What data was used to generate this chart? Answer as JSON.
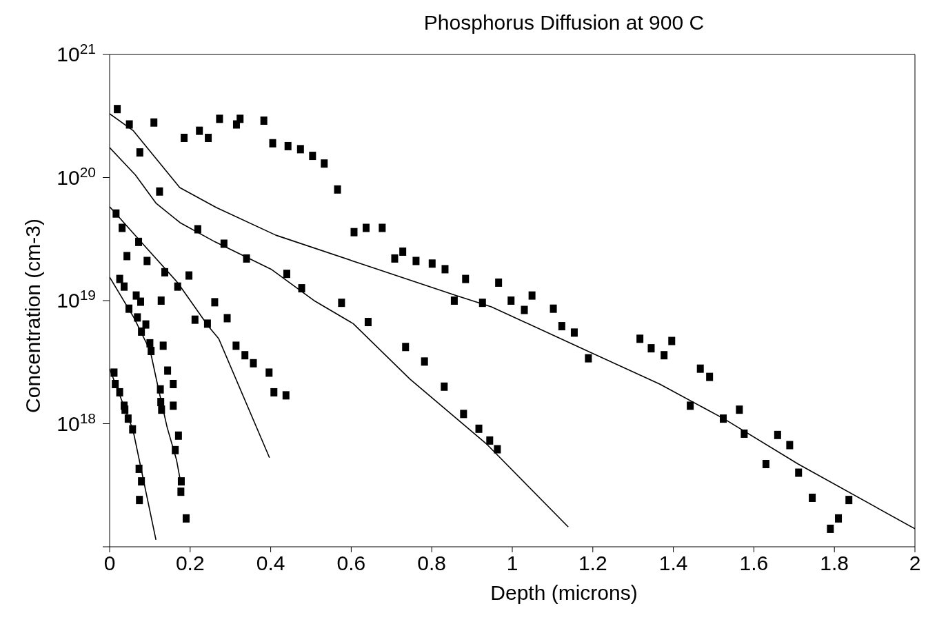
{
  "chart_data": {
    "type": "scatter",
    "title": "Phosphorus Diffusion at 900 C",
    "xlabel": "Depth (microns)",
    "ylabel": "Concentration (cm-3)",
    "xlim": [
      0,
      2
    ],
    "xticks": [
      0,
      0.2,
      0.4,
      0.6,
      0.8,
      1,
      1.2,
      1.4,
      1.6,
      1.8,
      2
    ],
    "ylim": [
      1e+17,
      1e+21
    ],
    "yticks": [
      {
        "value": 1e+17,
        "label": null
      },
      {
        "value": 1e+18,
        "label": "10$^{18}$"
      },
      {
        "value": 1e+19,
        "label": "10$^{19}$"
      },
      {
        "value": 1e+20,
        "label": "10$^{20}$"
      },
      {
        "value": 1e+21,
        "label": "10$^{21}$"
      }
    ],
    "log": "y",
    "grid": false,
    "legend": false,
    "marker": "square",
    "series": [
      {
        "color": "#000000",
        "x": [
          0.019,
          0.049,
          0.11,
          0.185,
          0.223,
          0.245,
          0.273,
          0.315,
          0.324,
          0.383,
          0.405,
          0.443,
          0.474,
          0.504,
          0.533,
          0.566,
          0.607,
          0.637,
          0.677,
          0.708,
          0.728,
          0.761,
          0.801,
          0.833,
          0.884,
          0.856,
          0.926,
          0.966,
          0.997,
          1.03,
          1.049,
          1.102,
          1.123,
          1.154,
          1.189,
          1.317,
          1.345,
          1.377,
          1.396,
          1.467,
          1.49,
          1.442,
          1.524,
          1.564,
          1.576,
          1.63,
          1.659,
          1.689,
          1.711,
          1.745,
          1.79,
          1.81,
          1.836
        ],
        "values": [
          3.6e+20,
          2.7e+20,
          2.8e+20,
          2.1e+20,
          2.4e+20,
          2.1e+20,
          3e+20,
          2.7e+20,
          3e+20,
          2.9e+20,
          1.9e+20,
          1.8e+20,
          1.7e+20,
          1.5e+20,
          1.3e+20,
          8e+19,
          3.6e+19,
          3.9e+19,
          3.9e+19,
          2.2e+19,
          2.5e+19,
          2.1e+19,
          2e+19,
          1.8e+19,
          1.5e+19,
          1e+19,
          9.6e+18,
          1.4e+19,
          1e+19,
          8.4e+18,
          1.1e+19,
          8.6e+18,
          6.2e+18,
          5.5e+18,
          3.4e+18,
          4.9e+18,
          4.1e+18,
          3.6e+18,
          4.7e+18,
          2.8e+18,
          2.4e+18,
          1.4e+18,
          1.1e+18,
          1.3e+18,
          8.3e+17,
          4.7e+17,
          8.1e+17,
          6.7e+17,
          4e+17,
          2.5e+17,
          1.4e+17,
          1.7e+17,
          2.4e+17
        ]
      },
      {
        "color": "#000000",
        "x": [
          0.075,
          0.124,
          0.219,
          0.284,
          0.34,
          0.44,
          0.477,
          0.576,
          0.642,
          0.735,
          0.782,
          0.831,
          0.879,
          0.917,
          0.944,
          0.963
        ],
        "values": [
          1.6e+20,
          7.7e+19,
          3.8e+19,
          2.9e+19,
          2.2e+19,
          1.65e+19,
          1.26e+19,
          9.6e+18,
          6.7e+18,
          4.2e+18,
          3.2e+18,
          2e+18,
          1.2e+18,
          9.1e+17,
          7.3e+17,
          6.2e+17
        ]
      },
      {
        "color": "#000000",
        "x": [
          0.016,
          0.031,
          0.043,
          0.072,
          0.093,
          0.137,
          0.128,
          0.169,
          0.197,
          0.212,
          0.243,
          0.261,
          0.292,
          0.314,
          0.336,
          0.357,
          0.396,
          0.408,
          0.438
        ],
        "values": [
          5.1e+19,
          3.9e+19,
          2.3e+19,
          3e+19,
          2.1e+19,
          1.7e+19,
          1e+19,
          1.3e+19,
          1.6e+19,
          7e+18,
          6.5e+18,
          9.7e+18,
          7.2e+18,
          4.3e+18,
          3.6e+18,
          3.1e+18,
          2.6e+18,
          1.8e+18,
          1.7e+18
        ]
      },
      {
        "color": "#000000",
        "x": [
          0.025,
          0.036,
          0.066,
          0.077,
          0.048,
          0.069,
          0.09,
          0.079,
          0.1,
          0.103,
          0.133,
          0.144,
          0.158,
          0.126,
          0.127,
          0.158,
          0.129,
          0.171,
          0.163,
          0.178,
          0.177,
          0.19
        ],
        "values": [
          1.5e+19,
          1.3e+19,
          1.1e+19,
          9.8e+18,
          8.6e+18,
          7.3e+18,
          6.4e+18,
          5.6e+18,
          4.5e+18,
          3.9e+18,
          4.3e+18,
          2.7e+18,
          2.1e+18,
          1.9e+18,
          1.5e+18,
          1.4e+18,
          1.3e+18,
          8e+17,
          6.1e+17,
          3.4e+17,
          2.8e+17,
          1.7e+17
        ]
      },
      {
        "color": "#000000",
        "x": [
          0.011,
          0.014,
          0.025,
          0.036,
          0.038,
          0.046,
          0.057,
          0.073,
          0.079,
          0.074
        ],
        "values": [
          2.6e+18,
          2.1e+18,
          1.8e+18,
          1.4e+18,
          1.3e+18,
          1.1e+18,
          9e+17,
          4.3e+17,
          3.4e+17,
          2.4e+17
        ]
      },
      {
        "type": "line",
        "marker": "none",
        "color": "#000000",
        "x": [
          0,
          0.059,
          0.174,
          0.265,
          0.413,
          0.623,
          0.86,
          0.948,
          1.179,
          1.366,
          1.525,
          1.71,
          2
        ],
        "values": [
          3.3e+20,
          2.4e+20,
          8.3e+19,
          5.7e+19,
          3.4e+19,
          2e+19,
          1.1e+19,
          8.9e+18,
          4e+18,
          2.1e+18,
          1.1e+18,
          4.7e+17,
          1.4e+17
        ]
      },
      {
        "type": "line",
        "marker": "none",
        "color": "#000000",
        "x": [
          0,
          0.064,
          0.115,
          0.175,
          0.262,
          0.401,
          0.51,
          0.605,
          0.746,
          0.935,
          1.139
        ],
        "values": [
          1.75e+20,
          1.05e+20,
          6.2e+19,
          4.3e+19,
          3e+19,
          1.8e+19,
          9.9e+18,
          6.5e+18,
          2.3e+18,
          6.9e+17,
          1.45e+17
        ]
      },
      {
        "type": "line",
        "marker": "none",
        "color": "#000000",
        "x": [
          0,
          0.076,
          0.169,
          0.245,
          0.271,
          0.397
        ],
        "values": [
          5.8e+19,
          3.05e+19,
          1.4e+19,
          6.2e+18,
          4.9e+18,
          5.3e+17
        ]
      },
      {
        "type": "line",
        "marker": "none",
        "color": "#000000",
        "x": [
          0,
          0.06,
          0.101,
          0.12,
          0.143,
          0.166,
          0.176
        ],
        "values": [
          1.55e+19,
          7.3e+18,
          3.9e+18,
          2e+18,
          9.3e+17,
          5.1e+17,
          3.4e+17
        ]
      },
      {
        "type": "line",
        "marker": "none",
        "color": "#000000",
        "x": [
          0,
          0.058,
          0.115
        ],
        "values": [
          2.8e+18,
          8.9e+17,
          1.14e+17
        ]
      }
    ]
  }
}
